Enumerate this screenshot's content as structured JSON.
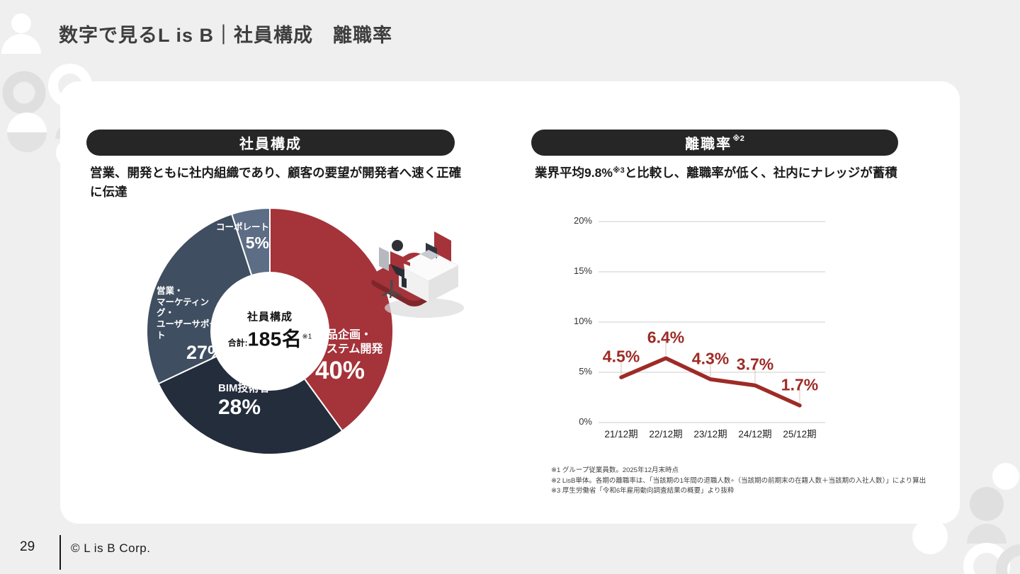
{
  "page": {
    "title": "数字で見るL is B｜社員構成　離職率",
    "page_number": "29",
    "copyright": "© L is B Corp."
  },
  "left_section": {
    "pill_label": "社員構成",
    "description": "営業、開発ともに社内組織であり、顧客の要望が開発者へ速く正確に伝達"
  },
  "right_section": {
    "pill_label": "離職率",
    "pill_footnote_mark": "※2",
    "description_before": "業界平均9.8%",
    "description_sup": "※3",
    "description_after": "と比較し、離職率が低く、社内にナレッジが蓄積"
  },
  "footnotes": [
    "※1 グループ従業員数。2025年12月末時点",
    "※2 LisB単体。各期の離職率は、「当該期の1年間の退職人数÷（当該期の前期末の在籍人数＋当該期の入社人数）」により算出",
    "※3 厚生労働省「令和6年雇用動向調査結果の概要」より抜粋"
  ],
  "colors": {
    "brand_red": "#A5333A",
    "line_red": "#9E2B26",
    "dark_navy": "#232D3B",
    "slate": "#3F4E60",
    "light_slate": "#5D6D85",
    "pill_black": "#262626",
    "background_gray": "#EFEFEF",
    "card_white": "#FFFFFF"
  },
  "chart_data": [
    {
      "type": "pie",
      "title": "社員構成",
      "center_title": "社員構成",
      "total_prefix": "合計:",
      "total_value": "185名",
      "total_note": "※1",
      "donut_hole_ratio": 0.48,
      "start_angle": "top",
      "direction": "clockwise",
      "slices": [
        {
          "label": "商品企画・システム開発",
          "label_lines": [
            "商品企画・",
            "システム開発"
          ],
          "value": 40,
          "display": "40%",
          "color": "#A5333A"
        },
        {
          "label": "BIM技術者",
          "value": 28,
          "display": "28%",
          "color": "#232D3B"
        },
        {
          "label": "営業・マーケティング・ユーザーサポート",
          "label_lines": [
            "営業・",
            "マーケティング・",
            "ユーザーサポート"
          ],
          "value": 27,
          "display": "27%",
          "color": "#3F4E60"
        },
        {
          "label": "コーポレート",
          "value": 5,
          "display": "5%",
          "color": "#5D6D85"
        }
      ]
    },
    {
      "type": "line",
      "title": "離職率",
      "categories": [
        "21/12期",
        "22/12期",
        "23/12期",
        "24/12期",
        "25/12期"
      ],
      "values": [
        4.5,
        6.4,
        4.3,
        3.7,
        1.7
      ],
      "value_labels": [
        "4.5%",
        "6.4%",
        "4.3%",
        "3.7%",
        "1.7%"
      ],
      "ylim": [
        0,
        20
      ],
      "ytick_labels": [
        "0%",
        "5%",
        "10%",
        "15%",
        "20%"
      ],
      "grid": "horizontal",
      "legend": "none",
      "line_color": "#9E2B26"
    }
  ]
}
